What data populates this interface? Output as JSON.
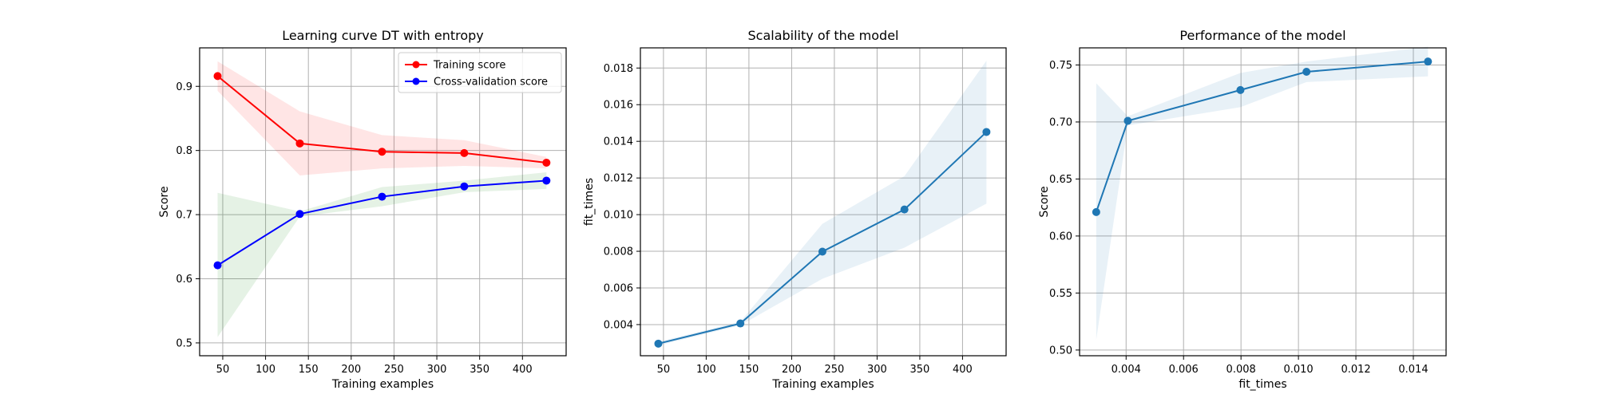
{
  "chart_data": [
    {
      "type": "line",
      "title": "Learning curve DT with entropy",
      "xlabel": "Training examples",
      "ylabel": "Score",
      "xlim": [
        23,
        451
      ],
      "ylim": [
        0.48,
        0.96
      ],
      "xticks": [
        50,
        100,
        150,
        200,
        250,
        300,
        350,
        400
      ],
      "yticks": [
        0.5,
        0.6,
        0.7,
        0.8,
        0.9
      ],
      "ytick_labels": [
        "0.5",
        "0.6",
        "0.7",
        "0.8",
        "0.9"
      ],
      "grid": true,
      "legend_position": "upper-right",
      "x": [
        44,
        140,
        236,
        332,
        428
      ],
      "series": [
        {
          "name": "Training score",
          "color": "#ff0000",
          "band_color": "#ff0000",
          "values": [
            0.916,
            0.811,
            0.798,
            0.796,
            0.781
          ],
          "lower": [
            0.893,
            0.761,
            0.772,
            0.776,
            0.772
          ],
          "upper": [
            0.939,
            0.861,
            0.824,
            0.816,
            0.79
          ]
        },
        {
          "name": "Cross-validation score",
          "color": "#0000ff",
          "band_color": "#008000",
          "values": [
            0.621,
            0.701,
            0.728,
            0.744,
            0.753
          ],
          "lower": [
            0.509,
            0.697,
            0.713,
            0.735,
            0.74
          ],
          "upper": [
            0.734,
            0.705,
            0.743,
            0.753,
            0.766
          ]
        }
      ]
    },
    {
      "type": "line",
      "title": "Scalability of the model",
      "xlabel": "Training examples",
      "ylabel": "fit_times",
      "xlim": [
        23,
        451
      ],
      "ylim": [
        0.0023,
        0.0191
      ],
      "xticks": [
        50,
        100,
        150,
        200,
        250,
        300,
        350,
        400
      ],
      "yticks": [
        0.004,
        0.006,
        0.008,
        0.01,
        0.012,
        0.014,
        0.016,
        0.018
      ],
      "ytick_labels": [
        "0.004",
        "0.006",
        "0.008",
        "0.010",
        "0.012",
        "0.014",
        "0.016",
        "0.018"
      ],
      "grid": true,
      "x": [
        44,
        140,
        236,
        332,
        428
      ],
      "series": [
        {
          "color": "#1f77b4",
          "band_color": "#1f77b4",
          "values": [
            0.00296,
            0.00406,
            0.00798,
            0.01028,
            0.01451
          ],
          "lower": [
            0.00286,
            0.00396,
            0.0065,
            0.0082,
            0.0106
          ],
          "upper": [
            0.00306,
            0.00416,
            0.0095,
            0.0121,
            0.0184
          ]
        }
      ]
    },
    {
      "type": "line",
      "title": "Performance of the model",
      "xlabel": "fit_times",
      "ylabel": "Score",
      "xlim": [
        0.00238,
        0.01514
      ],
      "ylim": [
        0.495,
        0.765
      ],
      "xticks": [
        0.004,
        0.006,
        0.008,
        0.01,
        0.012,
        0.014
      ],
      "xtick_labels": [
        "0.004",
        "0.006",
        "0.008",
        "0.010",
        "0.012",
        "0.014"
      ],
      "yticks": [
        0.5,
        0.55,
        0.6,
        0.65,
        0.7,
        0.75
      ],
      "ytick_labels": [
        "0.50",
        "0.55",
        "0.60",
        "0.65",
        "0.70",
        "0.75"
      ],
      "grid": true,
      "x": [
        0.00296,
        0.00406,
        0.00798,
        0.01028,
        0.01451
      ],
      "series": [
        {
          "color": "#1f77b4",
          "band_color": "#1f77b4",
          "values": [
            0.621,
            0.701,
            0.728,
            0.744,
            0.753
          ],
          "lower": [
            0.509,
            0.697,
            0.713,
            0.735,
            0.74
          ],
          "upper": [
            0.734,
            0.705,
            0.743,
            0.753,
            0.766
          ]
        }
      ]
    }
  ]
}
